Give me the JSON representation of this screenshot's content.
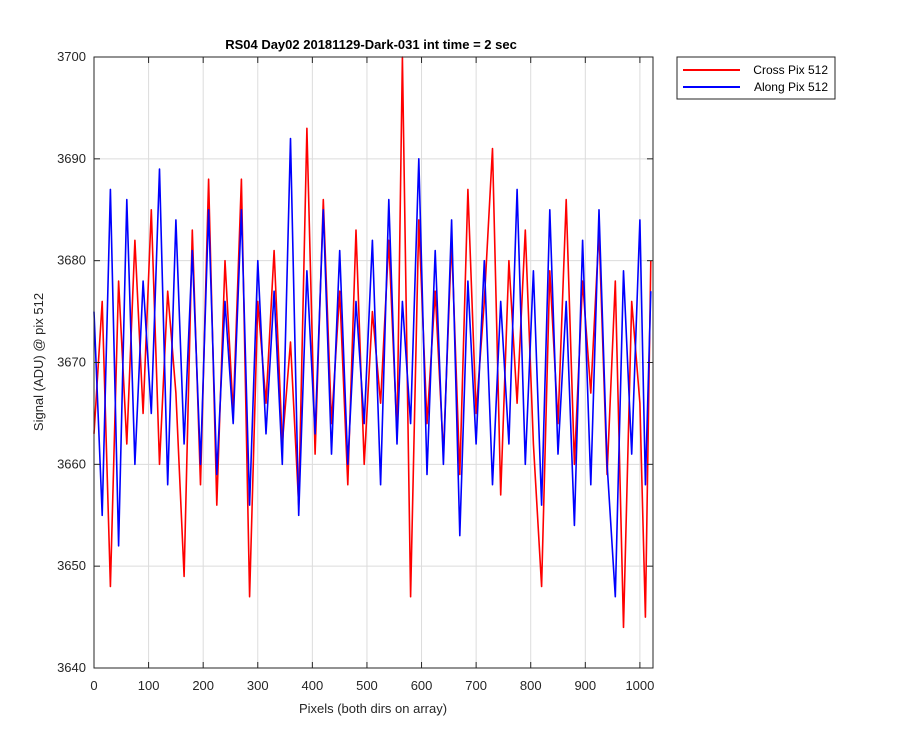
{
  "chart_data": {
    "type": "line",
    "title": "RS04 Day02 20181129-Dark-031 int time = 2 sec",
    "xlabel": "Pixels (both dirs on array)",
    "ylabel": "Signal (ADU) @ pix 512",
    "xlim": [
      0,
      1024
    ],
    "ylim": [
      3640,
      3700
    ],
    "xticks": [
      0,
      100,
      200,
      300,
      400,
      500,
      600,
      700,
      800,
      900,
      1000
    ],
    "yticks": [
      3640,
      3650,
      3660,
      3670,
      3680,
      3690,
      3700
    ],
    "grid": true,
    "legend_position": "outside-top-right",
    "x": [
      0,
      15,
      30,
      45,
      60,
      75,
      90,
      105,
      120,
      135,
      150,
      165,
      180,
      195,
      210,
      225,
      240,
      255,
      270,
      285,
      300,
      315,
      330,
      345,
      360,
      375,
      390,
      405,
      420,
      435,
      450,
      465,
      480,
      495,
      510,
      525,
      540,
      555,
      565,
      580,
      595,
      610,
      625,
      640,
      655,
      670,
      685,
      700,
      715,
      730,
      745,
      760,
      775,
      790,
      805,
      820,
      835,
      850,
      865,
      880,
      895,
      910,
      925,
      940,
      955,
      970,
      985,
      1000,
      1010,
      1020
    ],
    "series": [
      {
        "name": "Cross Pix 512",
        "color": "#ff0000",
        "values": [
          3663,
          3676,
          3648,
          3678,
          3662,
          3682,
          3665,
          3685,
          3660,
          3677,
          3667,
          3649,
          3683,
          3658,
          3688,
          3656,
          3680,
          3665,
          3688,
          3647,
          3676,
          3666,
          3681,
          3662,
          3672,
          3656,
          3693,
          3661,
          3686,
          3664,
          3677,
          3658,
          3683,
          3660,
          3675,
          3666,
          3682,
          3663,
          3700,
          3647,
          3684,
          3664,
          3677,
          3661,
          3682,
          3659,
          3687,
          3665,
          3676,
          3691,
          3657,
          3680,
          3666,
          3683,
          3662,
          3648,
          3679,
          3664,
          3686,
          3660,
          3678,
          3667,
          3683,
          3659,
          3678,
          3644,
          3676,
          3666,
          3645,
          3680
        ]
      },
      {
        "name": "Along Pix 512",
        "color": "#0000ff",
        "values": [
          3675,
          3655,
          3687,
          3652,
          3686,
          3660,
          3678,
          3665,
          3689,
          3658,
          3684,
          3662,
          3681,
          3660,
          3685,
          3659,
          3676,
          3664,
          3685,
          3656,
          3680,
          3663,
          3677,
          3660,
          3692,
          3655,
          3679,
          3663,
          3685,
          3661,
          3681,
          3660,
          3676,
          3664,
          3682,
          3658,
          3686,
          3662,
          3676,
          3664,
          3690,
          3659,
          3681,
          3660,
          3684,
          3653,
          3678,
          3662,
          3680,
          3658,
          3676,
          3662,
          3687,
          3660,
          3679,
          3656,
          3685,
          3661,
          3676,
          3654,
          3682,
          3658,
          3685,
          3660,
          3647,
          3679,
          3661,
          3684,
          3658,
          3677
        ]
      }
    ]
  }
}
